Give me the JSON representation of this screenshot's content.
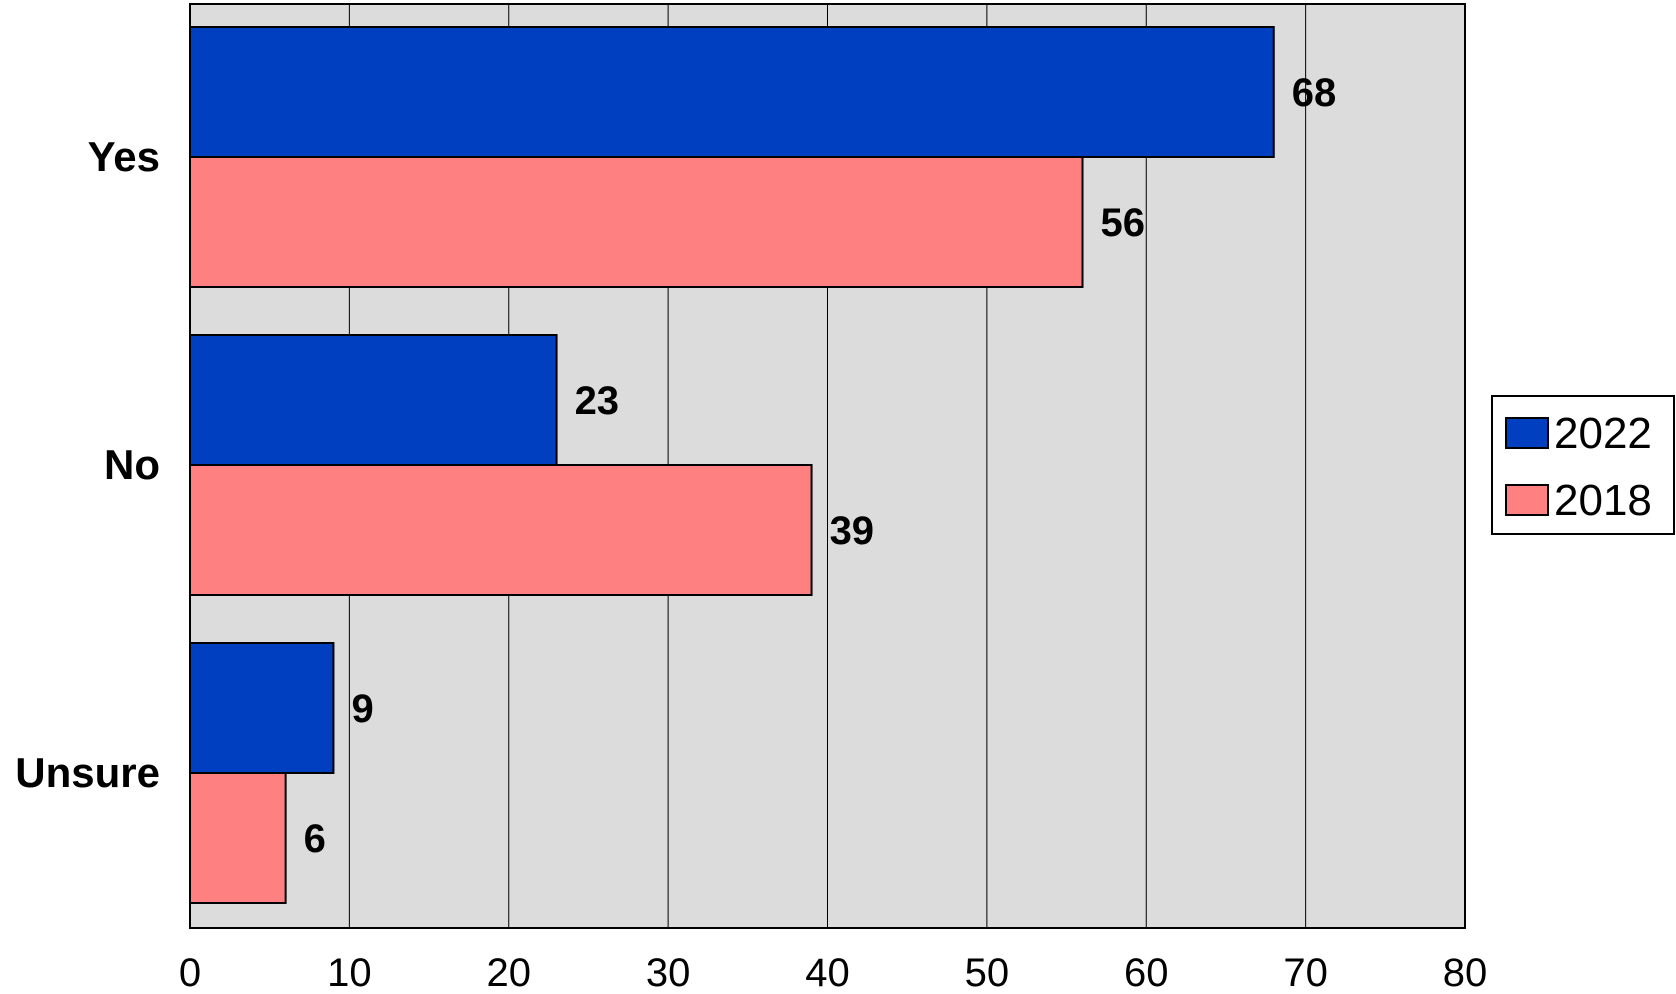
{
  "chart_data": {
    "type": "bar",
    "orientation": "horizontal",
    "categories": [
      "Yes",
      "No",
      "Unsure"
    ],
    "series": [
      {
        "name": "2022",
        "values": [
          68,
          23,
          9
        ],
        "color": "#003fbf"
      },
      {
        "name": "2018",
        "values": [
          56,
          39,
          6
        ],
        "color": "#ff8080"
      }
    ],
    "xlim": [
      0,
      80
    ],
    "xticks": [
      0,
      10,
      20,
      30,
      40,
      50,
      60,
      70,
      80
    ],
    "grid": true,
    "legend": "right",
    "plot_background": "#dcdcdc"
  }
}
